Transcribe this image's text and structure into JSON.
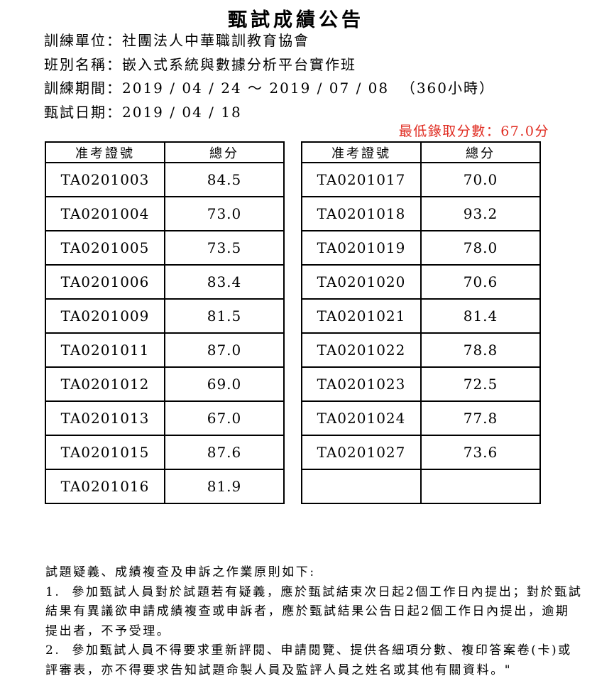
{
  "page": {
    "title": "甄試成績公告",
    "info_lines": [
      "訓練單位：社團法人中華職訓教育協會",
      "班別名稱：嵌入式系統與數據分析平台實作班",
      "訓練期間：2019 / 04 / 24 ～ 2019 / 07 / 08  （360小時）",
      "甄試日期：2019 / 04 / 18"
    ],
    "min_score_note": "最低錄取分數：67.0分",
    "min_score_color": "#e02b20",
    "text_color": "#000000",
    "background_color": "#ffffff"
  },
  "tables": [
    {
      "headers": [
        "准考證號",
        "總分"
      ],
      "rows": [
        [
          "TA0201003",
          "84.5"
        ],
        [
          "TA0201004",
          "73.0"
        ],
        [
          "TA0201005",
          "73.5"
        ],
        [
          "TA0201006",
          "83.4"
        ],
        [
          "TA0201009",
          "81.5"
        ],
        [
          "TA0201011",
          "87.0"
        ],
        [
          "TA0201012",
          "69.0"
        ],
        [
          "TA0201013",
          "67.0"
        ],
        [
          "TA0201015",
          "87.6"
        ],
        [
          "TA0201016",
          "81.9"
        ]
      ]
    },
    {
      "headers": [
        "准考證號",
        "總分"
      ],
      "rows": [
        [
          "TA0201017",
          "70.0"
        ],
        [
          "TA0201018",
          "93.2"
        ],
        [
          "TA0201019",
          "78.0"
        ],
        [
          "TA0201020",
          "70.6"
        ],
        [
          "TA0201021",
          "81.4"
        ],
        [
          "TA0201022",
          "78.8"
        ],
        [
          "TA0201023",
          "72.5"
        ],
        [
          "TA0201024",
          "77.8"
        ],
        [
          "TA0201027",
          "73.6"
        ],
        [
          "",
          ""
        ]
      ]
    }
  ],
  "notes": {
    "lines": [
      "試題疑義、成績複查及申訴之作業原則如下:",
      "1.  參加甄試人員對於試題若有疑義，應於甄試結束次日起2個工作日內提出；對於甄試",
      "結果有異議欲申請成績複查或申訴者，應於甄試結果公告日起2個工作日內提出，逾期",
      "提出者，不予受理。",
      "2.  參加甄試人員不得要求重新評閱、申請閱覽、提供各細項分數、複印答案卷(卡)或",
      "評審表，亦不得要求告知試題命製人員及監評人員之姓名或其他有關資料。\""
    ]
  }
}
